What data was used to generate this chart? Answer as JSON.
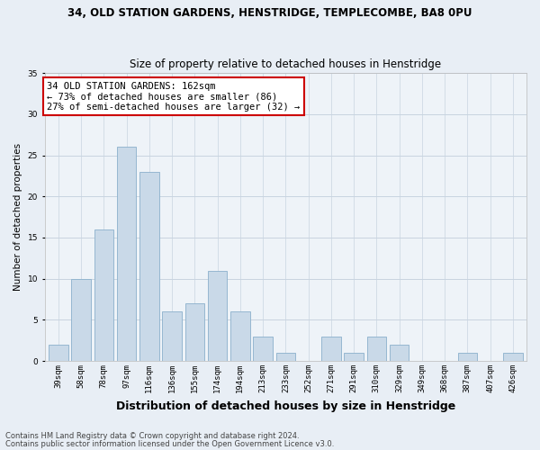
{
  "title1": "34, OLD STATION GARDENS, HENSTRIDGE, TEMPLECOMBE, BA8 0PU",
  "title2": "Size of property relative to detached houses in Henstridge",
  "xlabel": "Distribution of detached houses by size in Henstridge",
  "ylabel": "Number of detached properties",
  "categories": [
    "39sqm",
    "58sqm",
    "78sqm",
    "97sqm",
    "116sqm",
    "136sqm",
    "155sqm",
    "174sqm",
    "194sqm",
    "213sqm",
    "233sqm",
    "252sqm",
    "271sqm",
    "291sqm",
    "310sqm",
    "329sqm",
    "349sqm",
    "368sqm",
    "387sqm",
    "407sqm",
    "426sqm"
  ],
  "values": [
    2,
    10,
    16,
    26,
    23,
    6,
    7,
    11,
    6,
    3,
    1,
    0,
    3,
    1,
    3,
    2,
    0,
    0,
    1,
    0,
    1
  ],
  "bar_color": "#c9d9e8",
  "bar_edge_color": "#8ab0cc",
  "annotation_box_text": "34 OLD STATION GARDENS: 162sqm\n← 73% of detached houses are smaller (86)\n27% of semi-detached houses are larger (32) →",
  "annotation_box_color": "#ffffff",
  "annotation_box_edge_color": "#cc0000",
  "ylim": [
    0,
    35
  ],
  "yticks": [
    0,
    5,
    10,
    15,
    20,
    25,
    30,
    35
  ],
  "footnote1": "Contains HM Land Registry data © Crown copyright and database right 2024.",
  "footnote2": "Contains public sector information licensed under the Open Government Licence v3.0.",
  "bg_color": "#e8eef5",
  "plot_bg_color": "#eef3f8",
  "title1_fontsize": 8.5,
  "title2_fontsize": 8.5,
  "xlabel_fontsize": 9,
  "ylabel_fontsize": 7.5,
  "tick_fontsize": 6.5,
  "footnote_fontsize": 6,
  "annotation_fontsize": 7.5,
  "grid_color": "#c8d4e0"
}
